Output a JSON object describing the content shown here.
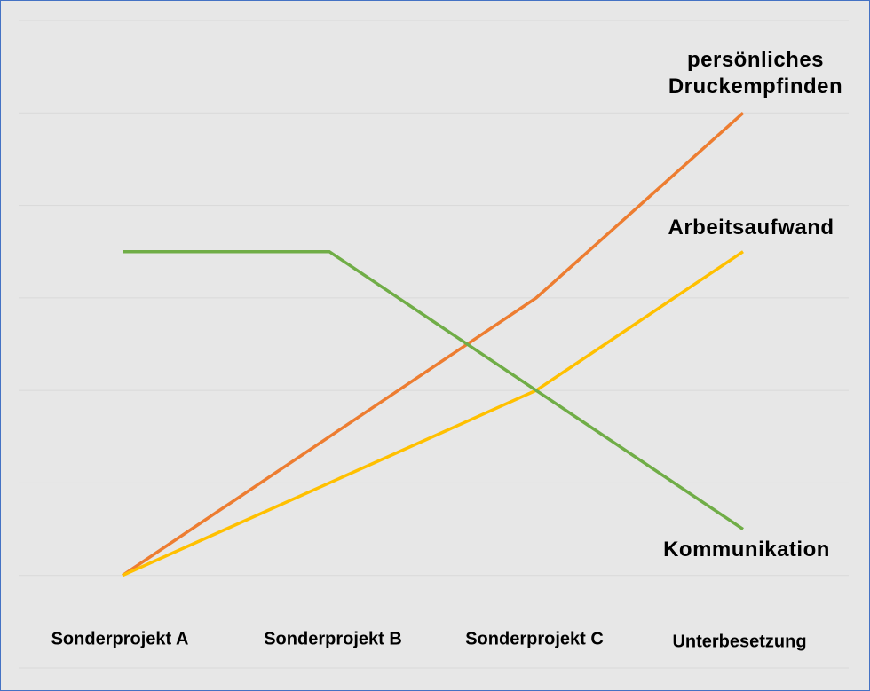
{
  "chart_data": {
    "type": "line",
    "categories": [
      "Sonderprojekt A",
      "Sonderprojekt B",
      "Sonderprojekt C",
      "Unterbesetzung"
    ],
    "series": [
      {
        "name": "persönliches Druckempfinden",
        "color": "#ed7d31",
        "values": [
          1,
          2.5,
          4,
          6
        ]
      },
      {
        "name": "Arbeitsaufwand",
        "color": "#ffc000",
        "values": [
          1,
          2,
          3,
          4.5
        ]
      },
      {
        "name": "Kommunikation",
        "color": "#70ad47",
        "values": [
          4.5,
          4.5,
          3,
          1.5
        ]
      }
    ],
    "ylim": [
      0,
      7
    ],
    "yticks": [
      0,
      1,
      2,
      3,
      4,
      5,
      6,
      7
    ],
    "grid": true
  }
}
